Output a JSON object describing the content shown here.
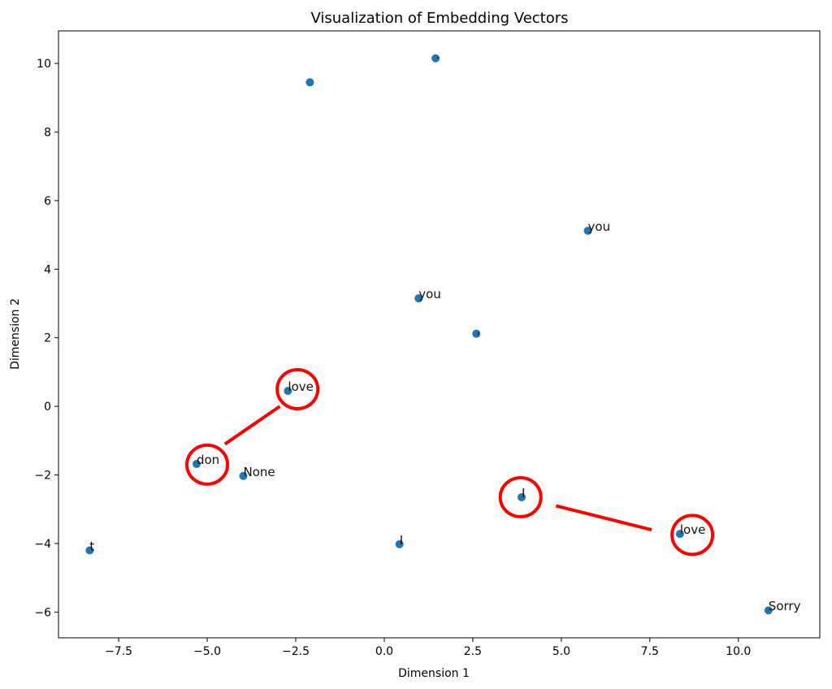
{
  "chart_data": {
    "type": "scatter",
    "title": "Visualization of Embedding Vectors",
    "xlabel": "Dimension 1",
    "ylabel": "Dimension 2",
    "xlim": [
      -9.2,
      12.3
    ],
    "ylim": [
      -6.75,
      10.95
    ],
    "xticks": [
      {
        "value": -7.5,
        "label": "−7.5"
      },
      {
        "value": -5.0,
        "label": "−5.0"
      },
      {
        "value": -2.5,
        "label": "−2.5"
      },
      {
        "value": 0.0,
        "label": "0.0"
      },
      {
        "value": 2.5,
        "label": "2.5"
      },
      {
        "value": 5.0,
        "label": "5.0"
      },
      {
        "value": 7.5,
        "label": "7.5"
      },
      {
        "value": 10.0,
        "label": "10.0"
      }
    ],
    "yticks": [
      {
        "value": -6,
        "label": "−6"
      },
      {
        "value": -4,
        "label": "−4"
      },
      {
        "value": -2,
        "label": "−2"
      },
      {
        "value": 0,
        "label": "0"
      },
      {
        "value": 2,
        "label": "2"
      },
      {
        "value": 4,
        "label": "4"
      },
      {
        "value": 6,
        "label": "6"
      },
      {
        "value": 8,
        "label": "8"
      },
      {
        "value": 10,
        "label": "10"
      }
    ],
    "grid": false,
    "marker_color": "#1f77b4",
    "points": [
      {
        "x": -2.1,
        "y": 9.45,
        "label": ""
      },
      {
        "x": 1.45,
        "y": 10.15,
        "label": "."
      },
      {
        "x": 5.75,
        "y": 5.12,
        "label": "you"
      },
      {
        "x": 0.97,
        "y": 3.15,
        "label": "you"
      },
      {
        "x": 2.6,
        "y": 2.12,
        "label": ","
      },
      {
        "x": -2.72,
        "y": 0.45,
        "label": "love"
      },
      {
        "x": -5.3,
        "y": -1.68,
        "label": "don"
      },
      {
        "x": -3.98,
        "y": -2.03,
        "label": "None"
      },
      {
        "x": 3.88,
        "y": -2.65,
        "label": "I"
      },
      {
        "x": 8.35,
        "y": -3.72,
        "label": "love"
      },
      {
        "x": -8.32,
        "y": -4.2,
        "label": "t"
      },
      {
        "x": 0.43,
        "y": -4.02,
        "label": "I"
      },
      {
        "x": 10.85,
        "y": -5.95,
        "label": "Sorry"
      }
    ],
    "annotations": {
      "color": "#ff0000",
      "circles": [
        {
          "x": -2.45,
          "y": 0.5
        },
        {
          "x": -5.0,
          "y": -1.7
        },
        {
          "x": 3.85,
          "y": -2.65
        },
        {
          "x": 8.7,
          "y": -3.75
        }
      ],
      "lines": [
        {
          "x1": -4.5,
          "y1": -1.1,
          "x2": -2.95,
          "y2": 0.0
        },
        {
          "x1": 4.85,
          "y1": -2.9,
          "x2": 7.55,
          "y2": -3.6
        }
      ]
    }
  }
}
